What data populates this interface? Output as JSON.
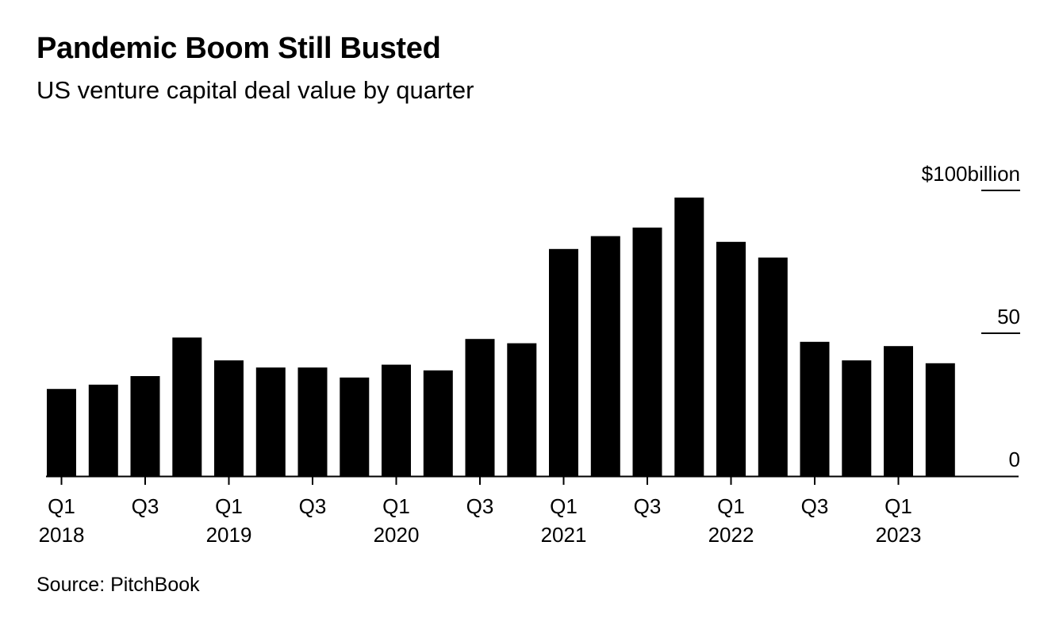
{
  "header": {
    "title": "Pandemic Boom Still Busted",
    "subtitle": "US venture capital deal value by quarter"
  },
  "footer": {
    "source": "Source: PitchBook"
  },
  "colors": {
    "bar": "#000000",
    "background": "#ffffff"
  },
  "chart_data": {
    "type": "bar",
    "title": "Pandemic Boom Still Busted",
    "subtitle": "US venture capital deal value by quarter",
    "categories": [
      "Q1 2018",
      "Q2 2018",
      "Q3 2018",
      "Q4 2018",
      "Q1 2019",
      "Q2 2019",
      "Q3 2019",
      "Q4 2019",
      "Q1 2020",
      "Q2 2020",
      "Q3 2020",
      "Q4 2020",
      "Q1 2021",
      "Q2 2021",
      "Q3 2021",
      "Q4 2021",
      "Q1 2022",
      "Q2 2022",
      "Q3 2022",
      "Q4 2022",
      "Q1 2023",
      "Q2 2023"
    ],
    "values": [
      30.5,
      32,
      35,
      48.5,
      40.5,
      38,
      38,
      34.5,
      39,
      37,
      48,
      46.5,
      79.5,
      84,
      87,
      97.5,
      82,
      76.5,
      47,
      40.5,
      45.5,
      39.5
    ],
    "x_tick_labels": [
      {
        "index": 0,
        "quarter": "Q1",
        "year": "2018"
      },
      {
        "index": 2,
        "quarter": "Q3",
        "year": ""
      },
      {
        "index": 4,
        "quarter": "Q1",
        "year": "2019"
      },
      {
        "index": 6,
        "quarter": "Q3",
        "year": ""
      },
      {
        "index": 8,
        "quarter": "Q1",
        "year": "2020"
      },
      {
        "index": 10,
        "quarter": "Q3",
        "year": ""
      },
      {
        "index": 12,
        "quarter": "Q1",
        "year": "2021"
      },
      {
        "index": 14,
        "quarter": "Q3",
        "year": ""
      },
      {
        "index": 16,
        "quarter": "Q1",
        "year": "2022"
      },
      {
        "index": 18,
        "quarter": "Q3",
        "year": ""
      },
      {
        "index": 20,
        "quarter": "Q1",
        "year": "2023"
      }
    ],
    "y_ticks": [
      {
        "value": 0,
        "label": "0"
      },
      {
        "value": 50,
        "label": "50"
      },
      {
        "value": 100,
        "label": "$100billion"
      }
    ],
    "ylim": [
      0,
      100
    ],
    "y_axis_position": "right",
    "grid": false,
    "legend": "none",
    "xlabel": "",
    "ylabel": ""
  }
}
